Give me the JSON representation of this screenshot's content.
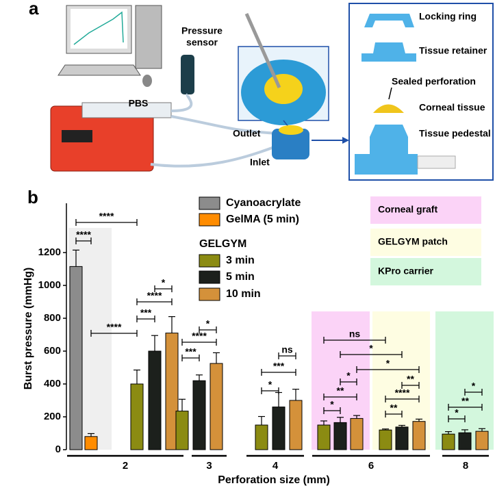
{
  "panel_labels": [
    "a",
    "b"
  ],
  "panel_a": {
    "pressure": "Pressure",
    "sensor": "sensor",
    "pbs": "PBS",
    "outlet": "Outlet",
    "inlet": "Inlet",
    "parts": [
      "Locking ring",
      "Tissue retainer",
      "Sealed perforation",
      "Corneal tissue",
      "Tissue pedestal"
    ]
  },
  "chart_data": {
    "type": "bar",
    "y_label": "Burst pressure (mmHg)",
    "x_label": "Perforation size (mm)",
    "ylim": [
      0,
      1500
    ],
    "yticks": [
      0,
      200,
      400,
      600,
      800,
      1000,
      1200
    ],
    "legend_subtitle": "GELGYM",
    "series": [
      {
        "name": "Cyanoacrylate",
        "color": "#8c8c8c"
      },
      {
        "name": "GelMA (5 min)",
        "color": "#ff8c00"
      },
      {
        "name": "3 min",
        "color": "#8b8b12"
      },
      {
        "name": "5 min",
        "color": "#1c201c"
      },
      {
        "name": "10 min",
        "color": "#d4913a"
      }
    ],
    "regions": [
      {
        "label": "Corneal graft",
        "color": "#fbd3f7"
      },
      {
        "label": "GELGYM patch",
        "color": "#fefde2"
      },
      {
        "label": "KPro carrier",
        "color": "#d3f7dd"
      }
    ],
    "groups": [
      "2",
      "3",
      "4",
      "6",
      "8"
    ],
    "bars": [
      {
        "series": 0,
        "value": 1115,
        "error": 100
      },
      {
        "series": 1,
        "value": 80,
        "error": 18
      },
      {
        "series": 2,
        "value": 400,
        "error": 85
      },
      {
        "series": 3,
        "value": 600,
        "error": 95
      },
      {
        "series": 4,
        "value": 710,
        "error": 100
      },
      {
        "series": 2,
        "value": 235,
        "error": 72
      },
      {
        "series": 3,
        "value": 420,
        "error": 35
      },
      {
        "series": 4,
        "value": 525,
        "error": 65
      },
      {
        "series": 2,
        "value": 150,
        "error": 52
      },
      {
        "series": 3,
        "value": 260,
        "error": 88
      },
      {
        "series": 4,
        "value": 300,
        "error": 68
      },
      {
        "series": 2,
        "value": 150,
        "error": 25
      },
      {
        "series": 3,
        "value": 165,
        "error": 32
      },
      {
        "series": 4,
        "value": 190,
        "error": 18
      },
      {
        "series": 2,
        "value": 120,
        "error": 6
      },
      {
        "series": 3,
        "value": 138,
        "error": 10
      },
      {
        "series": 4,
        "value": 172,
        "error": 14
      },
      {
        "series": 2,
        "value": 95,
        "error": 15
      },
      {
        "series": 3,
        "value": 103,
        "error": 18
      },
      {
        "series": 4,
        "value": 112,
        "error": 16
      }
    ],
    "significance": [
      {
        "bars": [
          0,
          1
        ],
        "label": "****"
      },
      {
        "bars": [
          0,
          2
        ],
        "label": "****"
      },
      {
        "bars": [
          1,
          2
        ],
        "label": "****"
      },
      {
        "bars": [
          2,
          3
        ],
        "label": "***"
      },
      {
        "bars": [
          2,
          4
        ],
        "label": "****"
      },
      {
        "bars": [
          3,
          4
        ],
        "label": "*"
      },
      {
        "bars": [
          5,
          6
        ],
        "label": "***"
      },
      {
        "bars": [
          5,
          7
        ],
        "label": "****"
      },
      {
        "bars": [
          6,
          7
        ],
        "label": "*"
      },
      {
        "bars": [
          8,
          9
        ],
        "label": "*"
      },
      {
        "bars": [
          8,
          10
        ],
        "label": "***"
      },
      {
        "bars": [
          9,
          10
        ],
        "label": "ns"
      },
      {
        "bars": [
          11,
          12
        ],
        "label": "*"
      },
      {
        "bars": [
          11,
          13
        ],
        "label": "**"
      },
      {
        "bars": [
          12,
          13
        ],
        "label": "*"
      },
      {
        "bars": [
          11,
          14
        ],
        "label": "ns"
      },
      {
        "bars": [
          12,
          15
        ],
        "label": "*"
      },
      {
        "bars": [
          13,
          16
        ],
        "label": "*"
      },
      {
        "bars": [
          14,
          15
        ],
        "label": "**"
      },
      {
        "bars": [
          14,
          16
        ],
        "label": "****"
      },
      {
        "bars": [
          15,
          16
        ],
        "label": "**"
      },
      {
        "bars": [
          17,
          18
        ],
        "label": "*"
      },
      {
        "bars": [
          17,
          19
        ],
        "label": "**"
      },
      {
        "bars": [
          18,
          19
        ],
        "label": "*"
      }
    ]
  }
}
